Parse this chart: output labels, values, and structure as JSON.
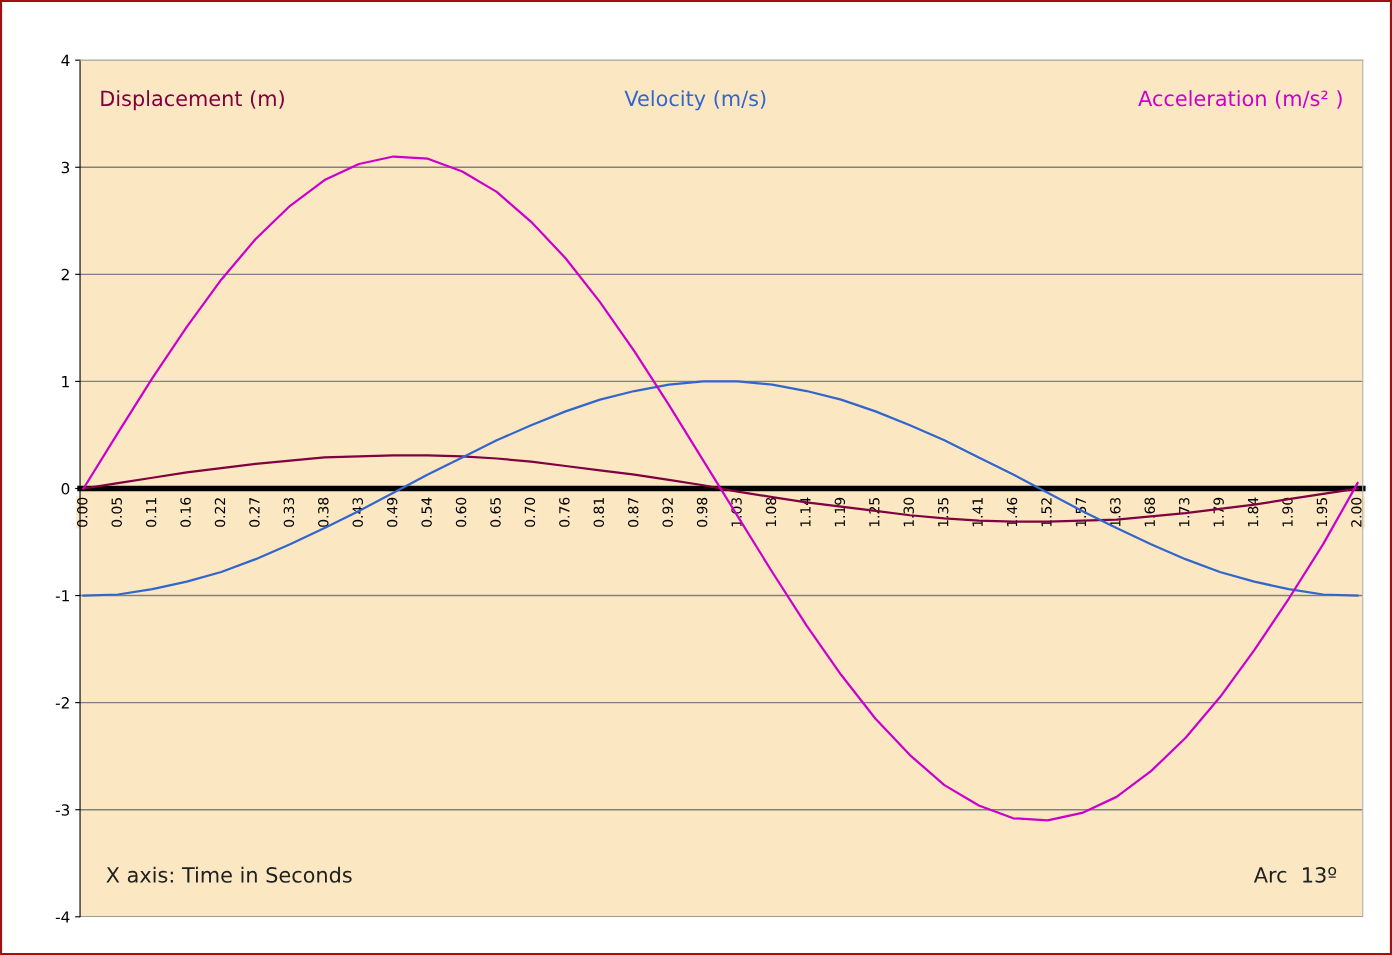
{
  "chart_data": {
    "type": "line",
    "categories": [
      "0.00",
      "0.05",
      "0.11",
      "0.16",
      "0.22",
      "0.27",
      "0.33",
      "0.38",
      "0.43",
      "0.49",
      "0.54",
      "0.60",
      "0.65",
      "0.70",
      "0.76",
      "0.81",
      "0.87",
      "0.92",
      "0.98",
      "1.03",
      "1.08",
      "1.14",
      "1.19",
      "1.25",
      "1.30",
      "1.35",
      "1.41",
      "1.46",
      "1.52",
      "1.57",
      "1.63",
      "1.68",
      "1.73",
      "1.79",
      "1.84",
      "1.90",
      "1.95",
      "2.00"
    ],
    "series": [
      {
        "name": "Displacement (m)",
        "color": "#800040",
        "values": [
          0,
          0.05,
          0.1,
          0.15,
          0.19,
          0.23,
          0.26,
          0.29,
          0.3,
          0.31,
          0.31,
          0.3,
          0.28,
          0.25,
          0.21,
          0.17,
          0.13,
          0.08,
          0.03,
          -0.03,
          -0.08,
          -0.13,
          -0.17,
          -0.21,
          -0.25,
          -0.28,
          -0.3,
          -0.31,
          -0.31,
          -0.3,
          -0.29,
          -0.26,
          -0.23,
          -0.19,
          -0.15,
          -0.1,
          -0.05,
          0
        ]
      },
      {
        "name": "Velocity (m/s)",
        "color": "#3366cc",
        "values": [
          -1,
          -0.99,
          -0.94,
          -0.87,
          -0.78,
          -0.66,
          -0.52,
          -0.37,
          -0.21,
          -0.04,
          0.13,
          0.29,
          0.45,
          0.59,
          0.72,
          0.83,
          0.91,
          0.97,
          1.0,
          1.0,
          0.97,
          0.91,
          0.83,
          0.72,
          0.59,
          0.45,
          0.29,
          0.13,
          -0.04,
          -0.21,
          -0.37,
          -0.52,
          -0.66,
          -0.78,
          -0.87,
          -0.94,
          -0.99,
          -1
        ]
      },
      {
        "name": "Acceleration (m/s² )",
        "color": "#cc00cc",
        "values": [
          0,
          0.52,
          1.03,
          1.51,
          1.95,
          2.33,
          2.64,
          2.88,
          3.03,
          3.1,
          3.08,
          2.96,
          2.77,
          2.49,
          2.15,
          1.74,
          1.28,
          0.78,
          0.26,
          -0.26,
          -0.78,
          -1.28,
          -1.74,
          -2.15,
          -2.49,
          -2.77,
          -2.96,
          -3.08,
          -3.1,
          -3.03,
          -2.88,
          -2.64,
          -2.33,
          -1.95,
          -1.51,
          -1.03,
          -0.52,
          0.05
        ]
      }
    ],
    "ylim": [
      -4,
      4
    ],
    "yticks": [
      -4,
      -3,
      -2,
      -1,
      0,
      1,
      2,
      3,
      4
    ],
    "grid": "y",
    "legend": false,
    "marker": "none",
    "line_style": "solid",
    "annotations": [
      "X axis: Time in Seconds",
      "Arc  13º"
    ]
  }
}
